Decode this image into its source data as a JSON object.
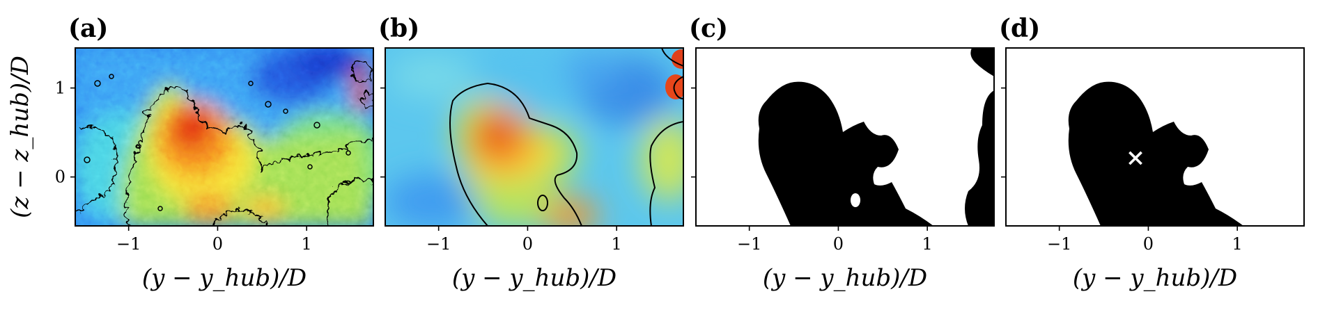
{
  "chart_data": [
    {
      "type": "heatmap",
      "panel_label": "(a)",
      "title": "",
      "xlabel": "(y − y_hub)/D",
      "ylabel": "(z − z_hub)/D",
      "xlim": [
        -1.6,
        1.75
      ],
      "ylim": [
        -0.55,
        1.45
      ],
      "x_ticks": [
        "−1",
        "0",
        "1"
      ],
      "y_ticks": [
        "0",
        "1"
      ],
      "colormap": "jet",
      "contour_level": "single black isoline",
      "grid": false
    },
    {
      "type": "heatmap",
      "panel_label": "(b)",
      "title": "",
      "xlabel": "(y − y_hub)/D",
      "ylabel": "",
      "xlim": [
        -1.6,
        1.75
      ],
      "ylim": [
        -0.55,
        1.45
      ],
      "x_ticks": [
        "−1",
        "0",
        "1"
      ],
      "y_ticks": [],
      "colormap": "jet",
      "contour_level": "single black isoline",
      "grid": false
    },
    {
      "type": "heatmap",
      "panel_label": "(c)",
      "title": "",
      "xlabel": "(y − y_hub)/D",
      "ylabel": "",
      "xlim": [
        -1.6,
        1.75
      ],
      "ylim": [
        -0.55,
        1.45
      ],
      "x_ticks": [
        "−1",
        "0",
        "1"
      ],
      "y_ticks": [],
      "colormap": "binary mask",
      "grid": false
    },
    {
      "type": "heatmap",
      "panel_label": "(d)",
      "title": "",
      "xlabel": "(y − y_hub)/D",
      "ylabel": "",
      "xlim": [
        -1.6,
        1.75
      ],
      "ylim": [
        -0.55,
        1.45
      ],
      "x_ticks": [
        "−1",
        "0",
        "1"
      ],
      "y_ticks": [],
      "colormap": "binary mask",
      "marker": {
        "symbol": "×",
        "x": -0.12,
        "y": 0.22,
        "color": "#ffffff"
      },
      "grid": false
    }
  ],
  "colors": {
    "frame": "#000000",
    "mask": "#000000",
    "background": "#ffffff"
  }
}
